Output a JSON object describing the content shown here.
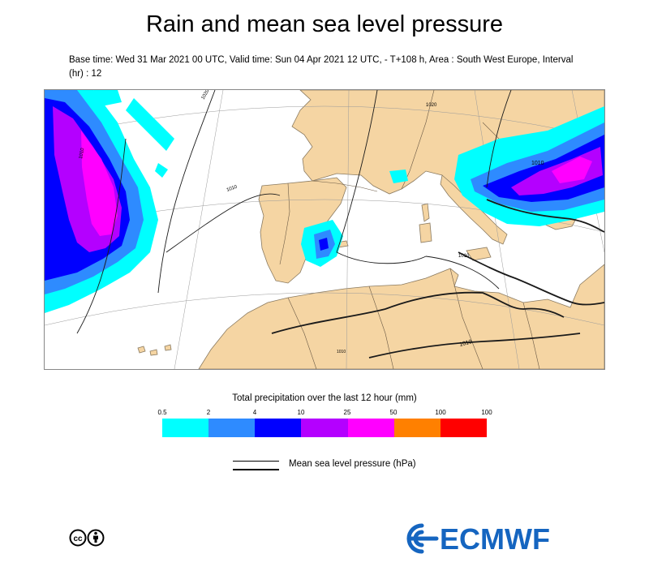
{
  "title": "Rain and mean sea level pressure",
  "subtitle": "Base time: Wed 31 Mar 2021 00 UTC, Valid time: Sun 04 Apr 2021 12 UTC, - T+108 h, Area : South West Europe, Interval (hr) : 12",
  "map": {
    "area": "South West Europe",
    "isobar_labels": [
      "1010",
      "1020",
      "1010",
      "1020",
      "1010",
      "1010",
      "1010",
      "1010"
    ],
    "colors": {
      "land": "#f5d5a3",
      "sea": "#ffffff",
      "border": "#6b5a45",
      "graticule": "#9a9a9a",
      "isobar": "#1a1a1a"
    }
  },
  "legend": {
    "title": "Total precipitation over the last 12 hour (mm)",
    "ticks": [
      "0.5",
      "2",
      "4",
      "10",
      "25",
      "50",
      "100",
      "100"
    ],
    "colors": [
      "#00ffff",
      "#2e8bff",
      "#0000ff",
      "#b400ff",
      "#ff00ff",
      "#ff8000",
      "#ff0000"
    ]
  },
  "mslp_legend": {
    "label": "Mean sea level pressure (hPa)"
  },
  "logo": {
    "text": "ECMWF",
    "color": "#1565c0"
  },
  "license_icon": "creative-commons-by-icon"
}
